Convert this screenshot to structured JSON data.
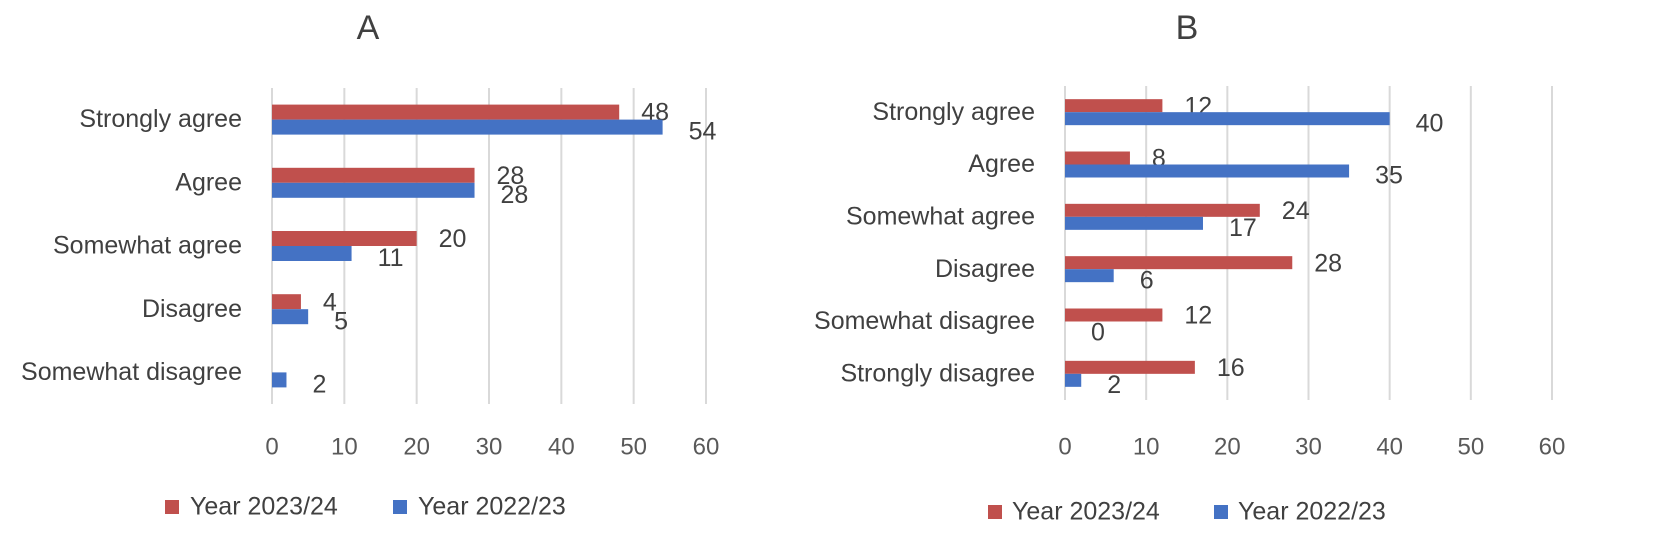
{
  "colors": {
    "series_2023": "#C0504D",
    "series_2022": "#4472C4",
    "grid": "#D9D9D9"
  },
  "chart_data": [
    {
      "type": "bar",
      "orientation": "horizontal",
      "title": "A",
      "categories": [
        "Strongly agree",
        "Agree",
        "Somewhat agree",
        "Disagree",
        "Somewhat disagree"
      ],
      "series": [
        {
          "name": "Year 2023/24",
          "values": [
            48,
            28,
            20,
            4,
            null
          ],
          "labels": [
            "48",
            "28",
            "20",
            "4",
            ""
          ]
        },
        {
          "name": "Year 2022/23",
          "values": [
            54,
            28,
            11,
            5,
            2
          ],
          "labels": [
            "54",
            "28",
            "11",
            "5",
            "2"
          ]
        }
      ],
      "xlim": [
        0,
        60
      ],
      "xticks": [
        0,
        10,
        20,
        30,
        40,
        50,
        60
      ],
      "grid": "vertical",
      "legend": "bottom"
    },
    {
      "type": "bar",
      "orientation": "horizontal",
      "title": "B",
      "categories": [
        "Strongly agree",
        "Agree",
        "Somewhat agree",
        "Disagree",
        "Somewhat disagree",
        "Strongly disagree"
      ],
      "series": [
        {
          "name": "Year 2023/24",
          "values": [
            12,
            8,
            24,
            28,
            12,
            16
          ],
          "labels": [
            "12",
            "8",
            "24",
            "28",
            "12",
            "16"
          ]
        },
        {
          "name": "Year 2022/23",
          "values": [
            40,
            35,
            17,
            6,
            0,
            2
          ],
          "labels": [
            "40",
            "35",
            "17",
            "6",
            "0",
            "2"
          ]
        }
      ],
      "xlim": [
        0,
        60
      ],
      "xticks": [
        0,
        10,
        20,
        30,
        40,
        50,
        60
      ],
      "grid": "vertical",
      "legend": "bottom"
    }
  ]
}
